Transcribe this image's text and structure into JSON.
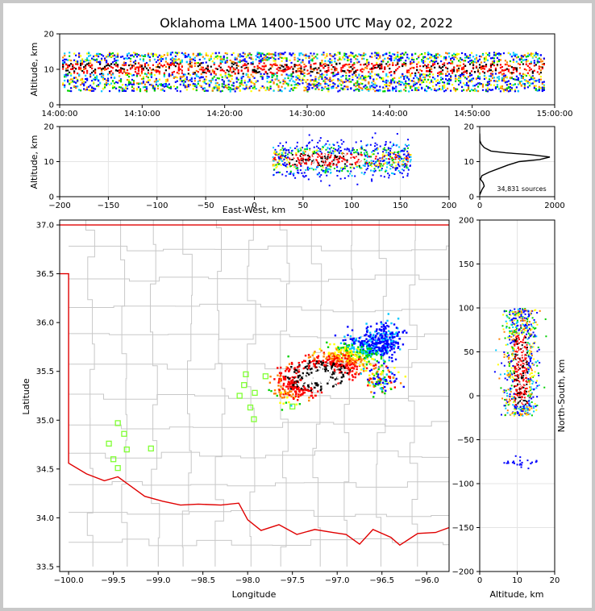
{
  "title": "Oklahoma LMA 1400-1500 UTC May 02, 2022",
  "source_count_label": "34,831 sources",
  "colors": {
    "state_border": "#e00000",
    "county_lines": "#c8c8c8",
    "stations": "#80ff33"
  },
  "chart_data": [
    {
      "id": "time-height",
      "type": "heatmap",
      "ylabel": "Altitude, km",
      "ylim": [
        0,
        20
      ],
      "yticks": [
        "0",
        "10",
        "20"
      ],
      "xlim": [
        "14:00:00",
        "15:00:00"
      ],
      "xticks": [
        "14:00:00",
        "14:10:00",
        "14:20:00",
        "14:30:00",
        "14:40:00",
        "14:50:00",
        "15:00:00"
      ],
      "band_altitude_km": [
        4,
        15
      ],
      "core_altitude_km": [
        9,
        12
      ]
    },
    {
      "id": "east-west-height",
      "type": "heatmap",
      "xlabel": "East-West, km",
      "ylabel": "Altitude, km",
      "xlim": [
        -200,
        200
      ],
      "ylim": [
        0,
        20
      ],
      "xticks": [
        "−200",
        "−150",
        "−100",
        "−50",
        "0",
        "50",
        "100",
        "150",
        "200"
      ],
      "yticks": [
        "0",
        "10",
        "20"
      ],
      "cluster_ew_km": [
        18,
        160
      ],
      "core_ew_km": [
        35,
        110
      ],
      "core_altitude_km": [
        9,
        12.5
      ]
    },
    {
      "id": "altitude-histogram",
      "type": "line",
      "xlim": [
        0,
        2000
      ],
      "ylim": [
        0,
        20
      ],
      "xticks": [
        "0",
        "2000"
      ],
      "yticks": [
        "0",
        "10",
        "20"
      ],
      "points": [
        [
          0,
          0.5
        ],
        [
          20,
          1
        ],
        [
          60,
          2
        ],
        [
          120,
          3
        ],
        [
          90,
          4
        ],
        [
          20,
          5
        ],
        [
          60,
          6
        ],
        [
          250,
          7
        ],
        [
          500,
          8
        ],
        [
          750,
          9
        ],
        [
          1050,
          10
        ],
        [
          1600,
          10.6
        ],
        [
          1870,
          11.3
        ],
        [
          1350,
          12
        ],
        [
          700,
          12.5
        ],
        [
          300,
          13
        ],
        [
          120,
          14
        ],
        [
          40,
          15
        ],
        [
          5,
          16
        ],
        [
          0,
          18
        ]
      ]
    },
    {
      "id": "plan-view",
      "type": "heatmap",
      "xlabel": "Longitude",
      "ylabel": "Latitude",
      "xlim": [
        -100.1,
        -95.75
      ],
      "ylim": [
        33.45,
        37.05
      ],
      "xticks": [
        "−100.0",
        "−99.5",
        "−99.0",
        "−98.5",
        "−98.0",
        "−97.5",
        "−97.0",
        "−96.5",
        "−96.0"
      ],
      "yticks": [
        "33.5",
        "34.0",
        "34.5",
        "35.0",
        "35.5",
        "36.0",
        "36.5",
        "37.0"
      ],
      "stations": [
        [
          -99.45,
          34.97
        ],
        [
          -99.38,
          34.86
        ],
        [
          -99.55,
          34.76
        ],
        [
          -99.35,
          34.7
        ],
        [
          -99.08,
          34.71
        ],
        [
          -99.5,
          34.6
        ],
        [
          -99.45,
          34.51
        ],
        [
          -98.02,
          35.47
        ],
        [
          -98.04,
          35.36
        ],
        [
          -98.09,
          35.25
        ],
        [
          -97.92,
          35.28
        ],
        [
          -97.97,
          35.13
        ],
        [
          -97.93,
          35.01
        ],
        [
          -97.8,
          35.45
        ],
        [
          -97.5,
          35.14
        ]
      ],
      "state_border_east_lon": -100.0,
      "northern_border_lat": 37.0
    },
    {
      "id": "height-north-south",
      "type": "heatmap",
      "xlabel": "Altitude, km",
      "ylabel": "North-South, km",
      "xlim": [
        0,
        20
      ],
      "ylim": [
        -200,
        200
      ],
      "xticks": [
        "0",
        "10",
        "20"
      ],
      "yticks": [
        "−200",
        "−150",
        "−100",
        "−50",
        "0",
        "50",
        "100",
        "150",
        "200"
      ],
      "cluster_ns_km": [
        -22,
        100
      ],
      "core_altitude_km": [
        9,
        12.5
      ]
    }
  ]
}
